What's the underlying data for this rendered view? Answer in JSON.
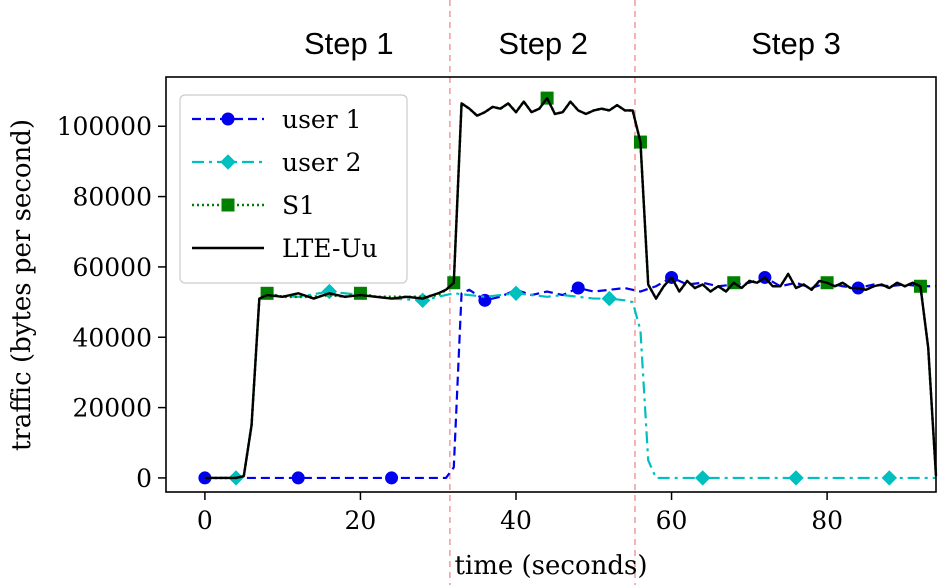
{
  "chart_data": {
    "type": "line",
    "xlabel": "time (seconds)",
    "ylabel": "traffic (bytes per second)",
    "xlim": [
      -5,
      94
    ],
    "ylim": [
      -4000,
      114000
    ],
    "xticks": [
      0,
      20,
      40,
      60,
      80
    ],
    "yticks": [
      0,
      20000,
      40000,
      60000,
      80000,
      100000
    ],
    "grid": false,
    "legend_position": "top-left",
    "step_boundaries": [
      31.5,
      55.3
    ],
    "step_labels": [
      {
        "label": "Step 1",
        "x": 18.5
      },
      {
        "label": "Step 2",
        "x": 43.5
      },
      {
        "label": "Step 3",
        "x": 76.0
      }
    ],
    "series": [
      {
        "name": "user 1",
        "color": "#0000ee",
        "style": "dashed",
        "marker": "circle",
        "x": [
          0,
          4,
          8,
          12,
          16,
          20,
          24,
          28,
          31,
          32,
          33,
          34,
          36,
          38,
          40,
          42,
          44,
          46,
          48,
          50,
          52,
          54,
          55,
          56,
          58,
          60,
          62,
          64,
          66,
          68,
          70,
          72,
          74,
          76,
          78,
          80,
          82,
          84,
          86,
          88,
          90,
          92,
          93,
          94
        ],
        "y": [
          0,
          0,
          0,
          0,
          0,
          0,
          0,
          0,
          0,
          3000,
          52500,
          53500,
          50500,
          51500,
          53500,
          52000,
          53000,
          52000,
          54000,
          53000,
          53500,
          54000,
          53500,
          53000,
          54500,
          57000,
          55000,
          55500,
          54500,
          55000,
          55500,
          57000,
          54500,
          55500,
          54000,
          55500,
          54500,
          54000,
          55000,
          54500,
          55000,
          54500,
          54500,
          54500
        ],
        "marker_x": [
          0,
          12,
          24,
          36,
          48,
          60,
          72,
          84
        ]
      },
      {
        "name": "user 2",
        "color": "#00bfbf",
        "style": "dashdot",
        "marker": "diamond",
        "x": [
          0,
          4,
          5,
          6,
          7,
          8,
          12,
          16,
          20,
          24,
          28,
          30,
          32,
          34,
          36,
          38,
          40,
          42,
          44,
          46,
          48,
          50,
          52,
          54,
          55,
          56,
          57,
          58,
          60,
          64,
          68,
          72,
          76,
          80,
          84,
          88,
          92,
          94
        ],
        "y": [
          0,
          0,
          500,
          15000,
          51000,
          52000,
          51500,
          53000,
          52000,
          51000,
          50500,
          51500,
          52500,
          52000,
          51500,
          52000,
          52500,
          52000,
          51500,
          52000,
          51500,
          51000,
          51000,
          50500,
          50000,
          42000,
          5000,
          0,
          0,
          0,
          0,
          0,
          0,
          0,
          0,
          0,
          0,
          0
        ],
        "marker_x": [
          4,
          16,
          28,
          40,
          52,
          64,
          76,
          88
        ]
      },
      {
        "name": "S1",
        "color": "#008000",
        "style": "dotted",
        "marker": "square",
        "x": [
          0,
          4,
          5,
          6,
          7,
          8,
          10,
          12,
          14,
          16,
          18,
          20,
          22,
          24,
          26,
          28,
          30,
          31,
          32,
          33,
          34,
          35,
          36,
          37,
          38,
          39,
          40,
          41,
          42,
          43,
          44,
          45,
          46,
          47,
          48,
          49,
          50,
          51,
          52,
          53,
          54,
          55,
          56,
          57,
          58,
          59,
          60,
          61,
          62,
          63,
          64,
          65,
          66,
          67,
          68,
          69,
          70,
          71,
          72,
          73,
          74,
          75,
          76,
          77,
          78,
          79,
          80,
          81,
          82,
          83,
          84,
          85,
          86,
          87,
          88,
          89,
          90,
          91,
          92,
          93,
          94
        ],
        "y": [
          0,
          0,
          500,
          15000,
          51000,
          52500,
          51500,
          51500,
          51500,
          52000,
          51500,
          52500,
          51500,
          51500,
          51500,
          51500,
          52000,
          53500,
          55500,
          106500,
          105000,
          103000,
          104000,
          105500,
          105000,
          106500,
          104000,
          107000,
          104000,
          105000,
          108000,
          103500,
          104000,
          107000,
          104500,
          103500,
          104500,
          105000,
          104500,
          106000,
          104500,
          104500,
          95500,
          55000,
          51000,
          54500,
          57000,
          53000,
          56000,
          54000,
          55000,
          53000,
          54500,
          53000,
          55500,
          54000,
          56000,
          55500,
          57000,
          54500,
          54500,
          58000,
          54000,
          55000,
          53500,
          56000,
          55500,
          54500,
          55500,
          54000,
          54000,
          53500,
          54500,
          55000,
          54000,
          55500,
          54500,
          55500,
          54500,
          37000,
          500
        ],
        "marker_x": [
          8,
          20,
          32,
          44,
          56,
          68,
          80,
          92
        ]
      },
      {
        "name": "LTE-Uu",
        "color": "#000000",
        "style": "solid",
        "marker": "none",
        "x": [
          0,
          4,
          5,
          6,
          7,
          8,
          10,
          12,
          14,
          16,
          18,
          20,
          22,
          24,
          26,
          28,
          30,
          31,
          32,
          33,
          34,
          35,
          36,
          37,
          38,
          39,
          40,
          41,
          42,
          43,
          44,
          45,
          46,
          47,
          48,
          49,
          50,
          51,
          52,
          53,
          54,
          55,
          56,
          57,
          58,
          59,
          60,
          61,
          62,
          63,
          64,
          65,
          66,
          67,
          68,
          69,
          70,
          71,
          72,
          73,
          74,
          75,
          76,
          77,
          78,
          79,
          80,
          81,
          82,
          83,
          84,
          85,
          86,
          87,
          88,
          89,
          90,
          91,
          92,
          93,
          94
        ],
        "y": [
          0,
          0,
          500,
          15000,
          51000,
          52000,
          51500,
          52500,
          51000,
          52500,
          51500,
          52000,
          51500,
          51000,
          51500,
          51000,
          52500,
          53500,
          55500,
          106500,
          105000,
          103000,
          104000,
          105500,
          105000,
          106500,
          104000,
          107000,
          104000,
          105000,
          108000,
          103500,
          104000,
          107000,
          104500,
          103500,
          104500,
          105000,
          104500,
          106000,
          104500,
          104500,
          95500,
          55000,
          51000,
          54500,
          57000,
          53000,
          56000,
          54000,
          55000,
          53000,
          54500,
          53000,
          55500,
          54000,
          56000,
          55500,
          57000,
          54500,
          54500,
          58000,
          54000,
          55000,
          53500,
          56000,
          55500,
          54500,
          55500,
          54000,
          54000,
          53500,
          54500,
          55000,
          54000,
          55500,
          54500,
          55500,
          54500,
          37000,
          500
        ]
      }
    ]
  }
}
